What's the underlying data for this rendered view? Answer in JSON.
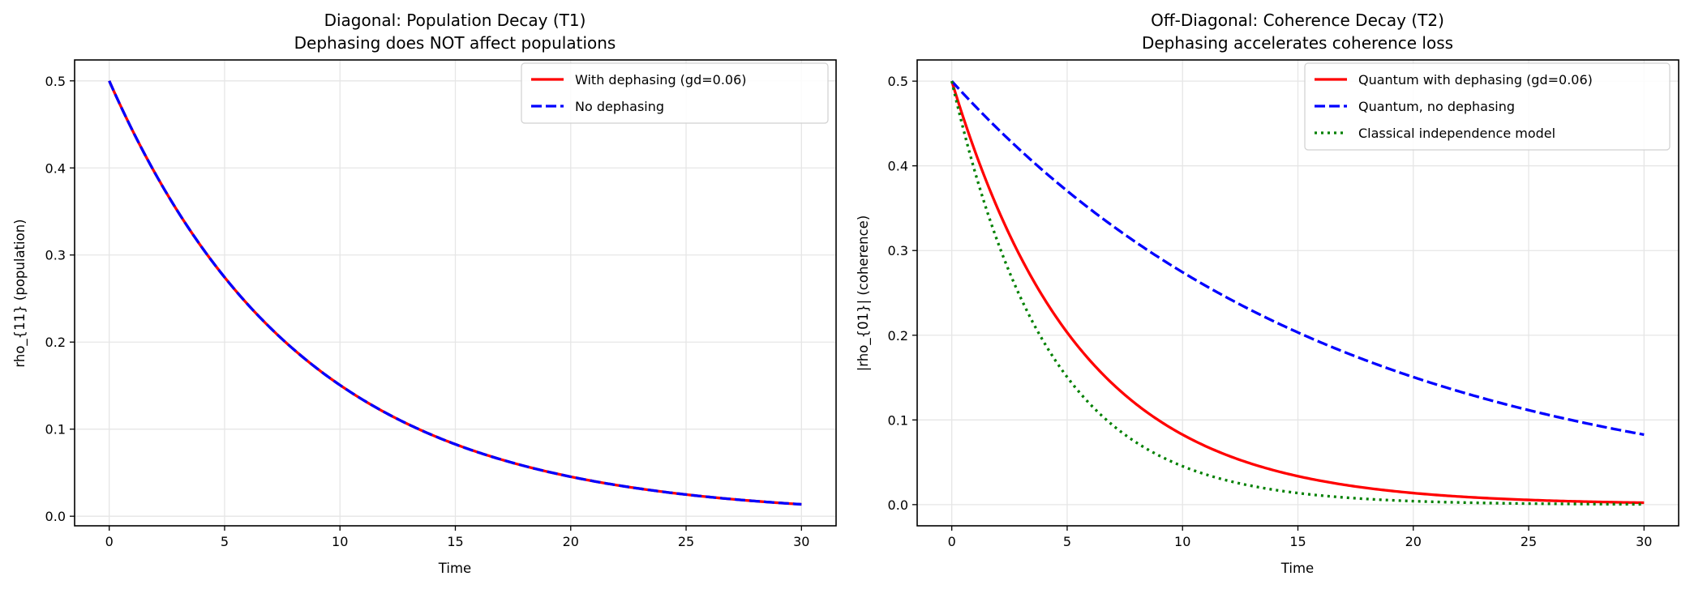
{
  "chart_data": [
    {
      "type": "line",
      "title": "Diagonal: Population Decay (T1)",
      "subtitle": "Dephasing does NOT affect populations",
      "xlabel": "Time",
      "ylabel": "rho_{11} (population)",
      "xlim": [
        -1.5,
        31.5
      ],
      "ylim": [
        -0.011,
        0.524
      ],
      "xticks": [
        0,
        5,
        10,
        15,
        20,
        25,
        30
      ],
      "yticks": [
        0.0,
        0.1,
        0.2,
        0.3,
        0.4,
        0.5
      ],
      "ytick_labels": [
        "0.0",
        "0.1",
        "0.2",
        "0.3",
        "0.4",
        "0.5"
      ],
      "grid": true,
      "legend_position": "top-right",
      "series": [
        {
          "name": "With dephasing (gd=0.06)",
          "color": "#ff0000",
          "style": "solid",
          "x_range": [
            0,
            30
          ],
          "y_at": {
            "0": 0.5,
            "5": 0.274,
            "10": 0.151,
            "15": 0.083,
            "20": 0.045,
            "25": 0.025,
            "30": 0.0137
          },
          "formula": "0.5*exp(-0.12*t)"
        },
        {
          "name": "No dephasing",
          "color": "#0000ff",
          "style": "dashed",
          "x_range": [
            0,
            30
          ],
          "y_at": {
            "0": 0.5,
            "5": 0.274,
            "10": 0.151,
            "15": 0.083,
            "20": 0.045,
            "25": 0.025,
            "30": 0.0137
          },
          "formula": "0.5*exp(-0.12*t)"
        }
      ]
    },
    {
      "type": "line",
      "title": "Off-Diagonal: Coherence Decay (T2)",
      "subtitle": "Dephasing accelerates coherence loss",
      "xlabel": "Time",
      "ylabel": "|rho_{01}| (coherence)",
      "xlim": [
        -1.5,
        31.5
      ],
      "ylim": [
        -0.025,
        0.525
      ],
      "xticks": [
        0,
        5,
        10,
        15,
        20,
        25,
        30
      ],
      "yticks": [
        0.0,
        0.1,
        0.2,
        0.3,
        0.4,
        0.5
      ],
      "ytick_labels": [
        "0.0",
        "0.1",
        "0.2",
        "0.3",
        "0.4",
        "0.5"
      ],
      "grid": true,
      "legend_position": "top-right",
      "series": [
        {
          "name": "Quantum with dephasing (gd=0.06)",
          "color": "#ff0000",
          "style": "solid",
          "x_range": [
            0,
            30
          ],
          "y_at": {
            "0": 0.5,
            "5": 0.203,
            "10": 0.083,
            "15": 0.034,
            "20": 0.014,
            "25": 0.006,
            "30": 0.002
          },
          "formula": "0.5*exp(-0.18*t)"
        },
        {
          "name": "Quantum, no dephasing",
          "color": "#0000ff",
          "style": "dashed",
          "x_range": [
            0,
            30
          ],
          "y_at": {
            "0": 0.5,
            "5": 0.37,
            "10": 0.274,
            "15": 0.203,
            "20": 0.151,
            "25": 0.112,
            "30": 0.083
          },
          "formula": "0.5*exp(-0.06*t)"
        },
        {
          "name": "Classical independence model",
          "color": "#008000",
          "style": "dotted",
          "x_range": [
            0,
            30
          ],
          "y_at": {
            "0": 0.5,
            "5": 0.151,
            "10": 0.045,
            "15": 0.014,
            "20": 0.004,
            "25": 0.001,
            "30": 0.0004
          },
          "formula": "0.5*exp(-0.24*t)"
        }
      ]
    }
  ]
}
